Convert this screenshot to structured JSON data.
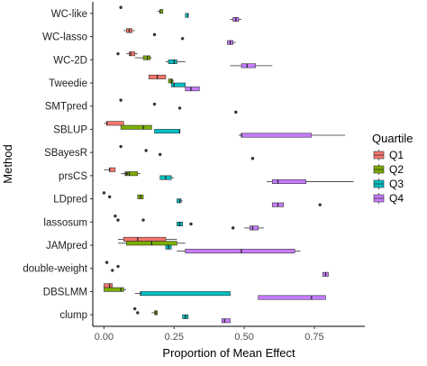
{
  "chart_data": {
    "type": "boxplot",
    "orientation": "horizontal",
    "xlabel": "Proportion of Mean Effect",
    "ylabel": "Method",
    "xlim": [
      -0.04,
      0.93
    ],
    "xticks": [
      0.0,
      0.25,
      0.5,
      0.75
    ],
    "xtick_labels": [
      "0.00",
      "0.25",
      "0.50",
      "0.75"
    ],
    "categories": [
      "WC-like",
      "WC-lasso",
      "WC-2D",
      "Tweedie",
      "SMTpred",
      "SBLUP",
      "SBayesR",
      "prsCS",
      "LDpred",
      "lassosum",
      "JAMpred",
      "double-weight",
      "DBSLMM",
      "clump"
    ],
    "legend": {
      "title": "Quartile",
      "position": "right",
      "entries": [
        {
          "label": "Q1",
          "color": "#f8766d"
        },
        {
          "label": "Q2",
          "color": "#7cae00"
        },
        {
          "label": "Q3",
          "color": "#00bfc4"
        },
        {
          "label": "Q4",
          "color": "#c77cff"
        }
      ]
    },
    "series": [
      {
        "name": "Q1",
        "color": "#f8766d",
        "boxes": [
          {
            "category": "WC-like",
            "outliers": [
              0.06
            ]
          },
          {
            "category": "WC-lasso",
            "whislo": 0.07,
            "q1": 0.08,
            "median": 0.09,
            "q3": 0.1,
            "whishi": 0.11,
            "outliers": []
          },
          {
            "category": "WC-2D",
            "whislo": 0.08,
            "q1": 0.09,
            "median": 0.095,
            "q3": 0.11,
            "whishi": 0.12,
            "outliers": [
              0.05
            ]
          },
          {
            "category": "Tweedie",
            "whislo": 0.16,
            "q1": 0.16,
            "median": 0.19,
            "q3": 0.22,
            "whishi": 0.22,
            "outliers": []
          },
          {
            "category": "SMTpred",
            "outliers": [
              0.06
            ]
          },
          {
            "category": "SBLUP",
            "whislo": 0.0,
            "q1": 0.01,
            "median": 0.01,
            "q3": 0.07,
            "whishi": 0.07,
            "outliers": []
          },
          {
            "category": "SBayesR",
            "outliers": [
              0.06
            ]
          },
          {
            "category": "prsCS",
            "whislo": 0.0,
            "q1": 0.02,
            "median": 0.02,
            "q3": 0.04,
            "whishi": 0.04,
            "outliers": []
          },
          {
            "category": "LDpred",
            "outliers": [
              0.0
            ]
          },
          {
            "category": "lassosum",
            "outliers": [
              0.04
            ]
          },
          {
            "category": "JAMpred",
            "whislo": 0.05,
            "q1": 0.07,
            "median": 0.12,
            "q3": 0.22,
            "whishi": 0.26,
            "outliers": []
          },
          {
            "category": "double-weight",
            "outliers": [
              0.01
            ]
          },
          {
            "category": "DBSLMM",
            "whislo": 0.0,
            "q1": 0.0,
            "median": 0.02,
            "q3": 0.03,
            "whishi": 0.03,
            "outliers": []
          },
          {
            "category": "clump",
            "outliers": [
              0.11
            ]
          }
        ]
      },
      {
        "name": "Q2",
        "color": "#7cae00",
        "boxes": [
          {
            "category": "WC-like",
            "whislo": 0.19,
            "q1": 0.2,
            "median": 0.2,
            "q3": 0.21,
            "whishi": 0.21,
            "outliers": []
          },
          {
            "category": "WC-lasso",
            "outliers": [
              0.18
            ]
          },
          {
            "category": "WC-2D",
            "whislo": 0.11,
            "q1": 0.14,
            "median": 0.155,
            "q3": 0.165,
            "whishi": 0.17,
            "outliers": []
          },
          {
            "category": "Tweedie",
            "whislo": 0.23,
            "q1": 0.23,
            "median": 0.24,
            "q3": 0.245,
            "whishi": 0.25,
            "outliers": []
          },
          {
            "category": "SMTpred",
            "outliers": [
              0.18
            ]
          },
          {
            "category": "SBLUP",
            "whislo": 0.06,
            "q1": 0.06,
            "median": 0.14,
            "q3": 0.17,
            "whishi": 0.17,
            "outliers": []
          },
          {
            "category": "SBayesR",
            "outliers": [
              0.15
            ]
          },
          {
            "category": "prsCS",
            "whislo": 0.06,
            "q1": 0.075,
            "median": 0.09,
            "q3": 0.12,
            "whishi": 0.13,
            "outliers": [
              0.08
            ]
          },
          {
            "category": "LDpred",
            "whislo": 0.12,
            "q1": 0.12,
            "median": 0.13,
            "q3": 0.14,
            "whishi": 0.14,
            "outliers": [
              0.02
            ]
          },
          {
            "category": "lassosum",
            "outliers": [
              0.05,
              0.14
            ]
          },
          {
            "category": "JAMpred",
            "whislo": 0.05,
            "q1": 0.08,
            "median": 0.17,
            "q3": 0.26,
            "whishi": 0.29,
            "outliers": []
          },
          {
            "category": "double-weight",
            "outliers": [
              0.05
            ]
          },
          {
            "category": "DBSLMM",
            "whislo": 0.0,
            "q1": 0.0,
            "median": 0.06,
            "q3": 0.07,
            "whishi": 0.08,
            "outliers": []
          },
          {
            "category": "clump",
            "whislo": 0.17,
            "q1": 0.18,
            "median": 0.185,
            "q3": 0.19,
            "whishi": 0.19,
            "outliers": [
              0.12
            ]
          }
        ]
      },
      {
        "name": "Q3",
        "color": "#00bfc4",
        "boxes": [
          {
            "category": "WC-like",
            "whislo": 0.29,
            "q1": 0.29,
            "median": 0.3,
            "q3": 0.3,
            "whishi": 0.3,
            "outliers": []
          },
          {
            "category": "WC-lasso",
            "outliers": [
              0.28
            ]
          },
          {
            "category": "WC-2D",
            "whislo": 0.22,
            "q1": 0.23,
            "median": 0.25,
            "q3": 0.26,
            "whishi": 0.29,
            "outliers": []
          },
          {
            "category": "Tweedie",
            "whislo": 0.24,
            "q1": 0.24,
            "median": 0.25,
            "q3": 0.29,
            "whishi": 0.29,
            "outliers": []
          },
          {
            "category": "SMTpred",
            "outliers": [
              0.27
            ]
          },
          {
            "category": "SBLUP",
            "whislo": 0.18,
            "q1": 0.18,
            "median": 0.27,
            "q3": 0.27,
            "whishi": 0.27,
            "outliers": []
          },
          {
            "category": "SBayesR",
            "outliers": [
              0.2
            ]
          },
          {
            "category": "prsCS",
            "whislo": 0.2,
            "q1": 0.2,
            "median": 0.22,
            "q3": 0.24,
            "whishi": 0.25,
            "outliers": []
          },
          {
            "category": "LDpred",
            "whislo": 0.26,
            "q1": 0.26,
            "median": 0.27,
            "q3": 0.275,
            "whishi": 0.28,
            "outliers": []
          },
          {
            "category": "lassosum",
            "whislo": 0.26,
            "q1": 0.26,
            "median": 0.27,
            "q3": 0.28,
            "whishi": 0.28,
            "outliers": [
              0.31
            ]
          },
          {
            "category": "JAMpred",
            "whislo": 0.22,
            "q1": 0.22,
            "median": 0.23,
            "q3": 0.24,
            "whishi": 0.24,
            "outliers": []
          },
          {
            "category": "double-weight",
            "outliers": [
              0.03
            ]
          },
          {
            "category": "DBSLMM",
            "whislo": 0.11,
            "q1": 0.13,
            "median": 0.13,
            "q3": 0.45,
            "whishi": 0.45,
            "outliers": []
          },
          {
            "category": "clump",
            "whislo": 0.28,
            "q1": 0.28,
            "median": 0.29,
            "q3": 0.3,
            "whishi": 0.3,
            "outliers": []
          }
        ]
      },
      {
        "name": "Q4",
        "color": "#c77cff",
        "boxes": [
          {
            "category": "WC-like",
            "whislo": 0.45,
            "q1": 0.46,
            "median": 0.47,
            "q3": 0.48,
            "whishi": 0.49,
            "outliers": []
          },
          {
            "category": "WC-lasso",
            "whislo": 0.44,
            "q1": 0.44,
            "median": 0.45,
            "q3": 0.46,
            "whishi": 0.47,
            "outliers": []
          },
          {
            "category": "WC-2D",
            "whislo": 0.45,
            "q1": 0.49,
            "median": 0.51,
            "q3": 0.54,
            "whishi": 0.6,
            "outliers": []
          },
          {
            "category": "Tweedie",
            "whislo": 0.29,
            "q1": 0.29,
            "median": 0.31,
            "q3": 0.34,
            "whishi": 0.34,
            "outliers": []
          },
          {
            "category": "SMTpred",
            "outliers": [
              0.47
            ]
          },
          {
            "category": "SBLUP",
            "whislo": 0.48,
            "q1": 0.49,
            "median": 0.49,
            "q3": 0.74,
            "whishi": 0.86,
            "outliers": []
          },
          {
            "category": "SBayesR",
            "outliers": [
              0.53
            ]
          },
          {
            "category": "prsCS",
            "whislo": 0.58,
            "q1": 0.6,
            "median": 0.62,
            "q3": 0.72,
            "whishi": 0.89,
            "outliers": []
          },
          {
            "category": "LDpred",
            "whislo": 0.6,
            "q1": 0.6,
            "median": 0.62,
            "q3": 0.64,
            "whishi": 0.64,
            "outliers": [
              0.77
            ]
          },
          {
            "category": "lassosum",
            "whislo": 0.5,
            "q1": 0.52,
            "median": 0.53,
            "q3": 0.55,
            "whishi": 0.57,
            "outliers": [
              0.46
            ]
          },
          {
            "category": "JAMpred",
            "whislo": 0.26,
            "q1": 0.29,
            "median": 0.49,
            "q3": 0.68,
            "whishi": 0.7,
            "outliers": []
          },
          {
            "category": "double-weight",
            "whislo": 0.78,
            "q1": 0.78,
            "median": 0.79,
            "q3": 0.8,
            "whishi": 0.8,
            "outliers": []
          },
          {
            "category": "DBSLMM",
            "whislo": 0.55,
            "q1": 0.55,
            "median": 0.74,
            "q3": 0.79,
            "whishi": 0.79,
            "outliers": []
          },
          {
            "category": "clump",
            "whislo": 0.42,
            "q1": 0.42,
            "median": 0.43,
            "q3": 0.45,
            "whishi": 0.45,
            "outliers": []
          }
        ]
      }
    ]
  }
}
